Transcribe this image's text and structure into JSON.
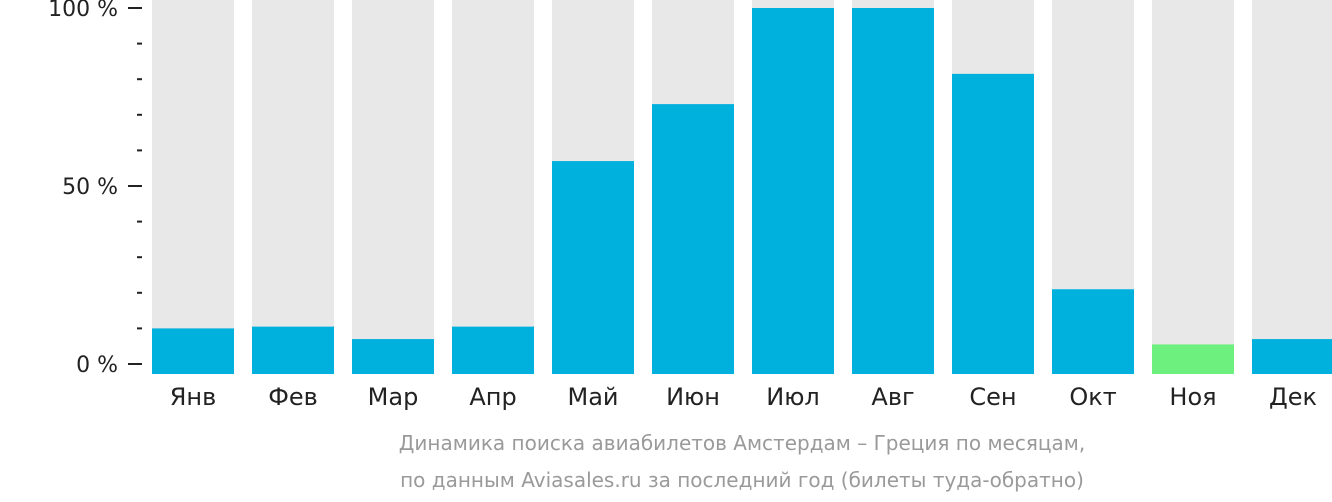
{
  "chart_data": {
    "type": "bar",
    "categories": [
      "Янв",
      "Фев",
      "Мар",
      "Апр",
      "Май",
      "Июн",
      "Июл",
      "Авг",
      "Сен",
      "Окт",
      "Ноя",
      "Дек"
    ],
    "values": [
      10,
      10.5,
      7,
      10.5,
      57,
      73,
      100,
      100,
      81.5,
      21,
      5.5,
      7
    ],
    "highlight_index": 10,
    "ylim": [
      0,
      100
    ],
    "yticks": [
      {
        "value": 0,
        "label": "0 %"
      },
      {
        "value": 50,
        "label": "50 %"
      },
      {
        "value": 100,
        "label": "100 %"
      }
    ],
    "minor_tick_step": 10,
    "colors": {
      "bar": "#00b0dd",
      "highlight": "#6ef07f",
      "background_bar": "#e8e8e8",
      "axis": "#222222"
    },
    "caption": {
      "line1": "Динамика поиска авиабилетов Амстердам – Греция по месяцам,",
      "line2": "по данным Aviasales.ru за последний год (билеты туда-обратно)"
    }
  }
}
